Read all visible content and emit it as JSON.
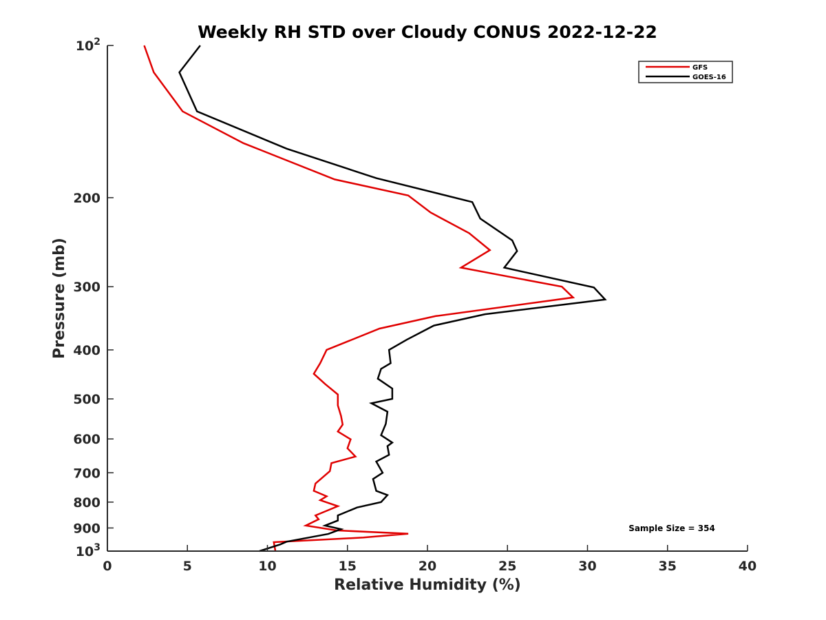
{
  "chart_data": {
    "type": "line",
    "title": "Weekly RH STD over Cloudy CONUS 2022-12-22",
    "xlabel": "Relative Humidity (%)",
    "ylabel": "Pressure (mb)",
    "xlim": [
      0,
      40
    ],
    "ylim": [
      100,
      1000
    ],
    "y_scale": "log",
    "y_reversed": true,
    "grid": false,
    "x_ticks": [
      {
        "value": 0,
        "label": "0"
      },
      {
        "value": 5,
        "label": "5"
      },
      {
        "value": 10,
        "label": "10"
      },
      {
        "value": 15,
        "label": "15"
      },
      {
        "value": 20,
        "label": "20"
      },
      {
        "value": 25,
        "label": "25"
      },
      {
        "value": 30,
        "label": "30"
      },
      {
        "value": 35,
        "label": "35"
      },
      {
        "value": 40,
        "label": "40"
      }
    ],
    "y_ticks": [
      {
        "value": 100,
        "base": "10",
        "exp": "2"
      },
      {
        "value": 200,
        "base": "200",
        "exp": ""
      },
      {
        "value": 300,
        "base": "300",
        "exp": ""
      },
      {
        "value": 400,
        "base": "400",
        "exp": ""
      },
      {
        "value": 500,
        "base": "500",
        "exp": ""
      },
      {
        "value": 600,
        "base": "600",
        "exp": ""
      },
      {
        "value": 700,
        "base": "700",
        "exp": ""
      },
      {
        "value": 800,
        "base": "800",
        "exp": ""
      },
      {
        "value": 900,
        "base": "900",
        "exp": ""
      },
      {
        "value": 1000,
        "base": "10",
        "exp": "3"
      }
    ],
    "legend": {
      "placement": "top-right"
    },
    "annotation": "Sample Size = 354",
    "series": [
      {
        "name": "GFS",
        "color": "#e00000",
        "points": [
          [
            2.3,
            100
          ],
          [
            2.9,
            113
          ],
          [
            4.7,
            135
          ],
          [
            8.5,
            156
          ],
          [
            14.2,
            184
          ],
          [
            18.8,
            198
          ],
          [
            20.2,
            214
          ],
          [
            22.6,
            235
          ],
          [
            23.9,
            254
          ],
          [
            22.1,
            275
          ],
          [
            28.4,
            300
          ],
          [
            29.1,
            315
          ],
          [
            20.5,
            343
          ],
          [
            17.0,
            363
          ],
          [
            13.7,
            400
          ],
          [
            13.3,
            425
          ],
          [
            12.9,
            446
          ],
          [
            13.6,
            467
          ],
          [
            14.4,
            490
          ],
          [
            14.4,
            515
          ],
          [
            14.6,
            540
          ],
          [
            14.7,
            562
          ],
          [
            14.4,
            580
          ],
          [
            15.2,
            601
          ],
          [
            15.0,
            626
          ],
          [
            15.5,
            650
          ],
          [
            14.0,
            670
          ],
          [
            13.9,
            695
          ],
          [
            13.0,
            735
          ],
          [
            12.9,
            760
          ],
          [
            13.7,
            779
          ],
          [
            13.3,
            793
          ],
          [
            14.4,
            815
          ],
          [
            13.0,
            850
          ],
          [
            13.2,
            865
          ],
          [
            12.4,
            890
          ],
          [
            14.3,
            910
          ],
          [
            18.8,
            924
          ],
          [
            16.0,
            940
          ],
          [
            10.4,
            960
          ],
          [
            10.5,
            1000
          ]
        ]
      },
      {
        "name": "GOES-16",
        "color": "#000000",
        "points": [
          [
            5.8,
            100
          ],
          [
            4.5,
            113
          ],
          [
            5.6,
            135
          ],
          [
            11.2,
            160
          ],
          [
            16.8,
            183
          ],
          [
            22.8,
            204
          ],
          [
            23.3,
            220
          ],
          [
            25.3,
            243
          ],
          [
            25.6,
            255
          ],
          [
            24.8,
            275
          ],
          [
            30.4,
            301
          ],
          [
            31.1,
            318
          ],
          [
            23.6,
            340
          ],
          [
            20.4,
            358
          ],
          [
            18.7,
            382
          ],
          [
            17.6,
            400
          ],
          [
            17.7,
            425
          ],
          [
            17.1,
            436
          ],
          [
            16.9,
            456
          ],
          [
            17.8,
            477
          ],
          [
            17.8,
            500
          ],
          [
            16.5,
            510
          ],
          [
            17.5,
            530
          ],
          [
            17.4,
            560
          ],
          [
            17.1,
            590
          ],
          [
            17.8,
            610
          ],
          [
            17.5,
            620
          ],
          [
            17.6,
            645
          ],
          [
            16.8,
            665
          ],
          [
            17.2,
            700
          ],
          [
            16.6,
            720
          ],
          [
            16.8,
            760
          ],
          [
            17.5,
            775
          ],
          [
            17.1,
            800
          ],
          [
            15.6,
            820
          ],
          [
            14.4,
            850
          ],
          [
            14.4,
            870
          ],
          [
            13.6,
            890
          ],
          [
            14.6,
            905
          ],
          [
            13.8,
            925
          ],
          [
            11.2,
            958
          ],
          [
            10.8,
            970
          ],
          [
            9.5,
            1000
          ]
        ]
      }
    ]
  }
}
